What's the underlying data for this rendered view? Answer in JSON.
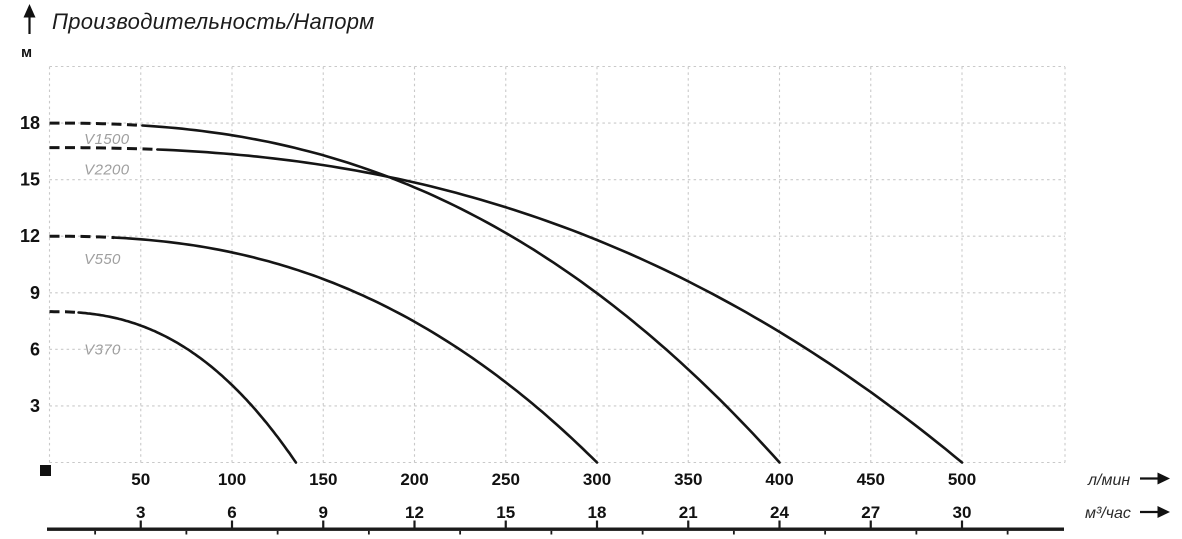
{
  "title": "Производительность/Напорм",
  "y_axis": {
    "unit": "м",
    "ticks_m": [
      3,
      6,
      9,
      12,
      15,
      18
    ]
  },
  "x_axis": {
    "primary_unit": "л/мин",
    "secondary_unit": "м³/час",
    "primary_ticks": [
      50,
      100,
      150,
      200,
      250,
      300,
      350,
      400,
      450,
      500
    ],
    "secondary_ticks": [
      3,
      6,
      9,
      12,
      15,
      18,
      21,
      24,
      27,
      30
    ],
    "minor_ticks_l_min": [
      25,
      75,
      125,
      175,
      225,
      275,
      325,
      375,
      425,
      475,
      525
    ]
  },
  "chart_data": {
    "type": "line",
    "title": "Производительность/Напорм",
    "ylabel": "м",
    "xlabel_primary": "л/мин",
    "xlabel_secondary": "м³/час",
    "xlim_l_min": [
      0,
      556
    ],
    "ylim_m": [
      0,
      21
    ],
    "grid": "dotted",
    "unit_conversion": "50 л/мин = 3 м³/час",
    "y_ticks_m": [
      3,
      6,
      9,
      12,
      15,
      18
    ],
    "x_ticks_l_min": [
      50,
      100,
      150,
      200,
      250,
      300,
      350,
      400,
      450,
      500
    ],
    "x_ticks_m3_h": [
      3,
      6,
      9,
      12,
      15,
      18,
      21,
      24,
      27,
      30
    ],
    "series": [
      {
        "name": "V1500",
        "shutoff_head_m": 18,
        "max_flow_l_min": 400,
        "dashed_until_l_min": 50,
        "curve_exponent": 2.4,
        "label_pos_q_h": [
          19,
          17.15
        ],
        "points_q_h": [
          [
            0,
            18
          ],
          [
            50,
            17.9
          ],
          [
            100,
            17.4
          ],
          [
            150,
            16.3
          ],
          [
            190,
            15.0
          ],
          [
            200,
            14.6
          ],
          [
            250,
            12.2
          ],
          [
            300,
            9.0
          ],
          [
            350,
            4.9
          ],
          [
            400,
            0
          ]
        ]
      },
      {
        "name": "V2200",
        "shutoff_head_m": 16.7,
        "max_flow_l_min": 500,
        "dashed_until_l_min": 60,
        "curve_exponent": 2.4,
        "label_pos_q_h": [
          19,
          15.55
        ],
        "points_q_h": [
          [
            0,
            16.7
          ],
          [
            50,
            16.6
          ],
          [
            100,
            16.3
          ],
          [
            150,
            15.8
          ],
          [
            190,
            15.0
          ],
          [
            250,
            13.5
          ],
          [
            300,
            11.8
          ],
          [
            350,
            9.6
          ],
          [
            400,
            6.9
          ],
          [
            450,
            3.7
          ],
          [
            500,
            0
          ]
        ]
      },
      {
        "name": "V550",
        "shutoff_head_m": 12,
        "max_flow_l_min": 300,
        "dashed_until_l_min": 36,
        "curve_exponent": 2.4,
        "label_pos_q_h": [
          19,
          10.8
        ],
        "points_q_h": [
          [
            0,
            12
          ],
          [
            50,
            11.8
          ],
          [
            100,
            11.1
          ],
          [
            150,
            9.7
          ],
          [
            200,
            7.5
          ],
          [
            250,
            4.3
          ],
          [
            300,
            0
          ]
        ]
      },
      {
        "name": "V370",
        "shutoff_head_m": 8,
        "max_flow_l_min": 135,
        "dashed_until_l_min": 16,
        "curve_exponent": 2.4,
        "label_pos_q_h": [
          19,
          6.0
        ],
        "points_q_h": [
          [
            0,
            8
          ],
          [
            25,
            7.9
          ],
          [
            50,
            7.3
          ],
          [
            75,
            6.1
          ],
          [
            100,
            4.1
          ],
          [
            125,
            1.3
          ],
          [
            135,
            0
          ]
        ]
      }
    ]
  },
  "colors": {
    "background": "#ffffff",
    "curve": "#151515",
    "grid": "#c9c9c9",
    "tick_text": "#111111",
    "series_label": "#9f9f9f",
    "axis_unit_text": "#2a2a2a",
    "axis_line": "#1a1a1a"
  }
}
